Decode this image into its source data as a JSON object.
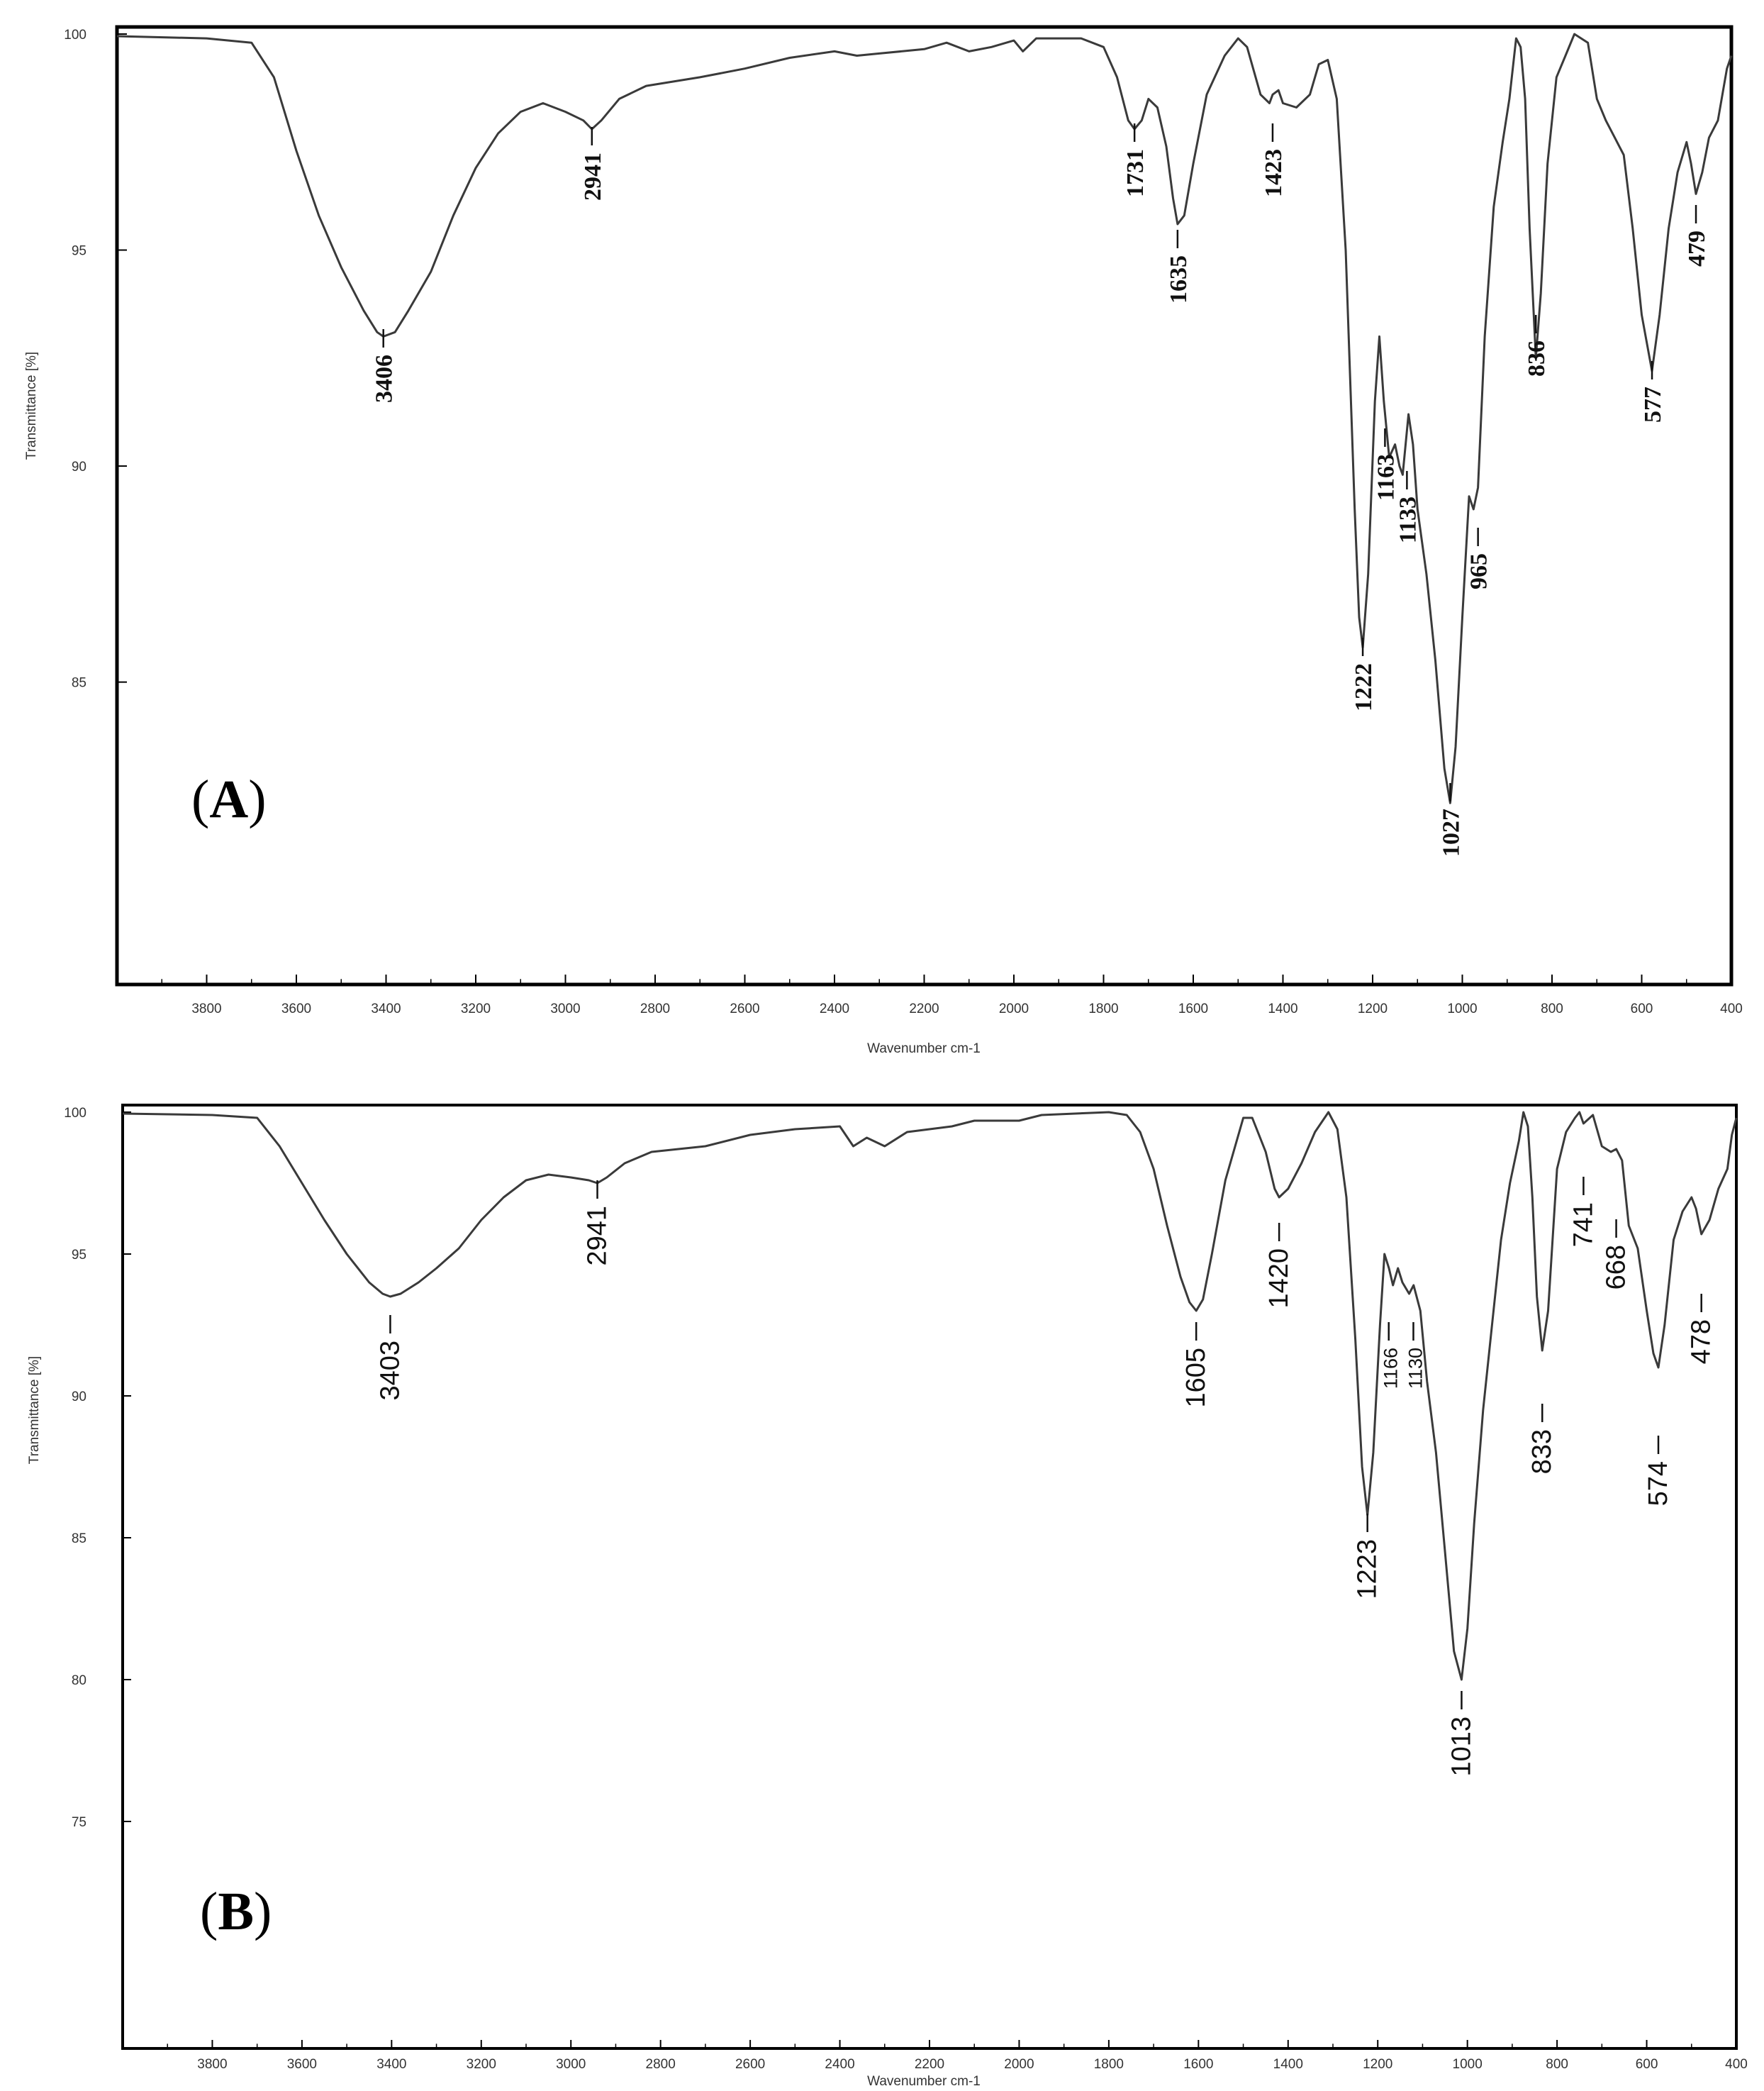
{
  "chart_data": [
    {
      "panel_label": "A",
      "type": "line",
      "xlabel": "Wavenumber cm-1",
      "ylabel": "Transmittance [%]",
      "xlim": [
        4000,
        400
      ],
      "ylim": [
        78,
        100
      ],
      "x_ticks": [
        3800,
        3600,
        3400,
        3200,
        3000,
        2800,
        2600,
        2400,
        2200,
        2000,
        1800,
        1600,
        1400,
        1200,
        1000,
        800,
        600,
        400
      ],
      "y_ticks": [
        85,
        90,
        95,
        100
      ],
      "series": [
        {
          "points": [
            [
              4000,
              99.95
            ],
            [
              3800,
              99.9
            ],
            [
              3700,
              99.8
            ],
            [
              3650,
              99.0
            ],
            [
              3600,
              97.3
            ],
            [
              3550,
              95.8
            ],
            [
              3500,
              94.6
            ],
            [
              3450,
              93.6
            ],
            [
              3420,
              93.1
            ],
            [
              3406,
              93.0
            ],
            [
              3380,
              93.1
            ],
            [
              3350,
              93.6
            ],
            [
              3300,
              94.5
            ],
            [
              3250,
              95.8
            ],
            [
              3200,
              96.9
            ],
            [
              3150,
              97.7
            ],
            [
              3100,
              98.2
            ],
            [
              3050,
              98.4
            ],
            [
              3000,
              98.2
            ],
            [
              2960,
              98.0
            ],
            [
              2941,
              97.8
            ],
            [
              2920,
              98.0
            ],
            [
              2880,
              98.5
            ],
            [
              2820,
              98.8
            ],
            [
              2700,
              99.0
            ],
            [
              2600,
              99.2
            ],
            [
              2500,
              99.45
            ],
            [
              2400,
              99.6
            ],
            [
              2350,
              99.5
            ],
            [
              2300,
              99.55
            ],
            [
              2200,
              99.65
            ],
            [
              2150,
              99.8
            ],
            [
              2100,
              99.6
            ],
            [
              2050,
              99.7
            ],
            [
              2000,
              99.85
            ],
            [
              1980,
              99.6
            ],
            [
              1950,
              99.9
            ],
            [
              1850,
              99.9
            ],
            [
              1800,
              99.7
            ],
            [
              1770,
              99.0
            ],
            [
              1745,
              98.0
            ],
            [
              1731,
              97.8
            ],
            [
              1715,
              98.0
            ],
            [
              1700,
              98.5
            ],
            [
              1680,
              98.3
            ],
            [
              1660,
              97.4
            ],
            [
              1645,
              96.2
            ],
            [
              1635,
              95.6
            ],
            [
              1620,
              95.8
            ],
            [
              1600,
              97.0
            ],
            [
              1570,
              98.6
            ],
            [
              1530,
              99.5
            ],
            [
              1500,
              99.9
            ],
            [
              1480,
              99.7
            ],
            [
              1450,
              98.6
            ],
            [
              1430,
              98.4
            ],
            [
              1423,
              98.6
            ],
            [
              1410,
              98.7
            ],
            [
              1400,
              98.4
            ],
            [
              1370,
              98.3
            ],
            [
              1340,
              98.6
            ],
            [
              1320,
              99.3
            ],
            [
              1300,
              99.4
            ],
            [
              1280,
              98.5
            ],
            [
              1260,
              95.0
            ],
            [
              1240,
              89.0
            ],
            [
              1230,
              86.5
            ],
            [
              1222,
              85.8
            ],
            [
              1210,
              87.5
            ],
            [
              1195,
              91.5
            ],
            [
              1185,
              93.0
            ],
            [
              1175,
              91.5
            ],
            [
              1163,
              90.2
            ],
            [
              1150,
              90.5
            ],
            [
              1140,
              90.0
            ],
            [
              1133,
              89.8
            ],
            [
              1120,
              91.2
            ],
            [
              1110,
              90.5
            ],
            [
              1100,
              89.0
            ],
            [
              1080,
              87.5
            ],
            [
              1060,
              85.5
            ],
            [
              1040,
              83.0
            ],
            [
              1027,
              82.2
            ],
            [
              1015,
              83.5
            ],
            [
              1000,
              86.5
            ],
            [
              985,
              89.3
            ],
            [
              975,
              89.0
            ],
            [
              965,
              89.5
            ],
            [
              950,
              93.0
            ],
            [
              930,
              96.0
            ],
            [
              910,
              97.5
            ],
            [
              895,
              98.5
            ],
            [
              880,
              99.9
            ],
            [
              870,
              99.7
            ],
            [
              860,
              98.5
            ],
            [
              850,
              95.5
            ],
            [
              836,
              92.5
            ],
            [
              825,
              94.0
            ],
            [
              810,
              97.0
            ],
            [
              790,
              99.0
            ],
            [
              770,
              99.5
            ],
            [
              750,
              100.0
            ],
            [
              720,
              99.8
            ],
            [
              700,
              98.5
            ],
            [
              680,
              98.0
            ],
            [
              660,
              97.6
            ],
            [
              640,
              97.2
            ],
            [
              620,
              95.5
            ],
            [
              600,
              93.5
            ],
            [
              577,
              92.2
            ],
            [
              560,
              93.5
            ],
            [
              540,
              95.5
            ],
            [
              520,
              96.8
            ],
            [
              500,
              97.5
            ],
            [
              490,
              97.0
            ],
            [
              479,
              96.3
            ],
            [
              465,
              96.8
            ],
            [
              450,
              97.6
            ],
            [
              430,
              98.0
            ],
            [
              410,
              99.2
            ],
            [
              400,
              99.5
            ]
          ]
        }
      ],
      "annotations": [
        "3406",
        "2941",
        "1731",
        "1635",
        "1423",
        "1222",
        "1163",
        "1133",
        "1027",
        "965",
        "836",
        "577",
        "479"
      ]
    },
    {
      "panel_label": "B",
      "type": "line",
      "xlabel": "Wavenumber cm-1",
      "ylabel": "Transmittance [%]",
      "xlim": [
        4000,
        400
      ],
      "ylim": [
        67,
        100
      ],
      "x_ticks": [
        3800,
        3600,
        3400,
        3200,
        3000,
        2800,
        2600,
        2400,
        2200,
        2000,
        1800,
        1600,
        1400,
        1200,
        1000,
        800,
        600,
        400
      ],
      "y_ticks": [
        75,
        80,
        85,
        90,
        95,
        100
      ],
      "series": [
        {
          "points": [
            [
              4000,
              99.95
            ],
            [
              3800,
              99.9
            ],
            [
              3700,
              99.8
            ],
            [
              3650,
              98.8
            ],
            [
              3600,
              97.5
            ],
            [
              3550,
              96.2
            ],
            [
              3500,
              95.0
            ],
            [
              3450,
              94.0
            ],
            [
              3420,
              93.6
            ],
            [
              3403,
              93.5
            ],
            [
              3380,
              93.6
            ],
            [
              3340,
              94.0
            ],
            [
              3300,
              94.5
            ],
            [
              3250,
              95.2
            ],
            [
              3200,
              96.2
            ],
            [
              3150,
              97.0
            ],
            [
              3100,
              97.6
            ],
            [
              3050,
              97.8
            ],
            [
              3000,
              97.7
            ],
            [
              2960,
              97.6
            ],
            [
              2941,
              97.5
            ],
            [
              2920,
              97.7
            ],
            [
              2880,
              98.2
            ],
            [
              2820,
              98.6
            ],
            [
              2700,
              98.8
            ],
            [
              2600,
              99.2
            ],
            [
              2500,
              99.4
            ],
            [
              2400,
              99.5
            ],
            [
              2370,
              98.8
            ],
            [
              2340,
              99.1
            ],
            [
              2300,
              98.8
            ],
            [
              2250,
              99.3
            ],
            [
              2150,
              99.5
            ],
            [
              2100,
              99.7
            ],
            [
              2000,
              99.7
            ],
            [
              1950,
              99.9
            ],
            [
              1800,
              100.0
            ],
            [
              1760,
              99.9
            ],
            [
              1730,
              99.3
            ],
            [
              1700,
              98.0
            ],
            [
              1670,
              96.0
            ],
            [
              1640,
              94.2
            ],
            [
              1620,
              93.3
            ],
            [
              1605,
              93.0
            ],
            [
              1590,
              93.4
            ],
            [
              1570,
              95.0
            ],
            [
              1540,
              97.6
            ],
            [
              1500,
              99.8
            ],
            [
              1480,
              99.8
            ],
            [
              1450,
              98.6
            ],
            [
              1430,
              97.3
            ],
            [
              1420,
              97.0
            ],
            [
              1400,
              97.3
            ],
            [
              1370,
              98.2
            ],
            [
              1340,
              99.3
            ],
            [
              1310,
              100.0
            ],
            [
              1290,
              99.4
            ],
            [
              1270,
              97.0
            ],
            [
              1250,
              92.0
            ],
            [
              1235,
              87.5
            ],
            [
              1223,
              85.8
            ],
            [
              1210,
              88.0
            ],
            [
              1195,
              92.5
            ],
            [
              1185,
              95.0
            ],
            [
              1175,
              94.5
            ],
            [
              1166,
              93.9
            ],
            [
              1155,
              94.5
            ],
            [
              1145,
              94.0
            ],
            [
              1130,
              93.6
            ],
            [
              1120,
              93.9
            ],
            [
              1105,
              93.0
            ],
            [
              1090,
              90.5
            ],
            [
              1070,
              88.0
            ],
            [
              1050,
              84.5
            ],
            [
              1030,
              81.0
            ],
            [
              1013,
              80.0
            ],
            [
              1000,
              81.8
            ],
            [
              985,
              85.5
            ],
            [
              965,
              89.5
            ],
            [
              945,
              92.5
            ],
            [
              925,
              95.5
            ],
            [
              905,
              97.5
            ],
            [
              885,
              99.0
            ],
            [
              875,
              100.0
            ],
            [
              865,
              99.5
            ],
            [
              855,
              97.0
            ],
            [
              845,
              93.5
            ],
            [
              833,
              91.6
            ],
            [
              820,
              93.0
            ],
            [
              810,
              95.5
            ],
            [
              800,
              98.0
            ],
            [
              780,
              99.3
            ],
            [
              760,
              99.8
            ],
            [
              750,
              100.0
            ],
            [
              741,
              99.6
            ],
            [
              720,
              99.9
            ],
            [
              700,
              98.8
            ],
            [
              680,
              98.6
            ],
            [
              668,
              98.7
            ],
            [
              655,
              98.3
            ],
            [
              640,
              96.0
            ],
            [
              620,
              95.2
            ],
            [
              600,
              93.0
            ],
            [
              585,
              91.5
            ],
            [
              574,
              91.0
            ],
            [
              560,
              92.5
            ],
            [
              540,
              95.5
            ],
            [
              520,
              96.5
            ],
            [
              500,
              97.0
            ],
            [
              490,
              96.6
            ],
            [
              478,
              95.7
            ],
            [
              460,
              96.2
            ],
            [
              440,
              97.3
            ],
            [
              420,
              98.0
            ],
            [
              410,
              99.2
            ],
            [
              400,
              99.8
            ]
          ]
        }
      ],
      "annotations": [
        "3403",
        "2941",
        "1605",
        "1420",
        "1223",
        "1166",
        "1130",
        "1013",
        "833",
        "741",
        "668",
        "574",
        "478"
      ]
    }
  ]
}
